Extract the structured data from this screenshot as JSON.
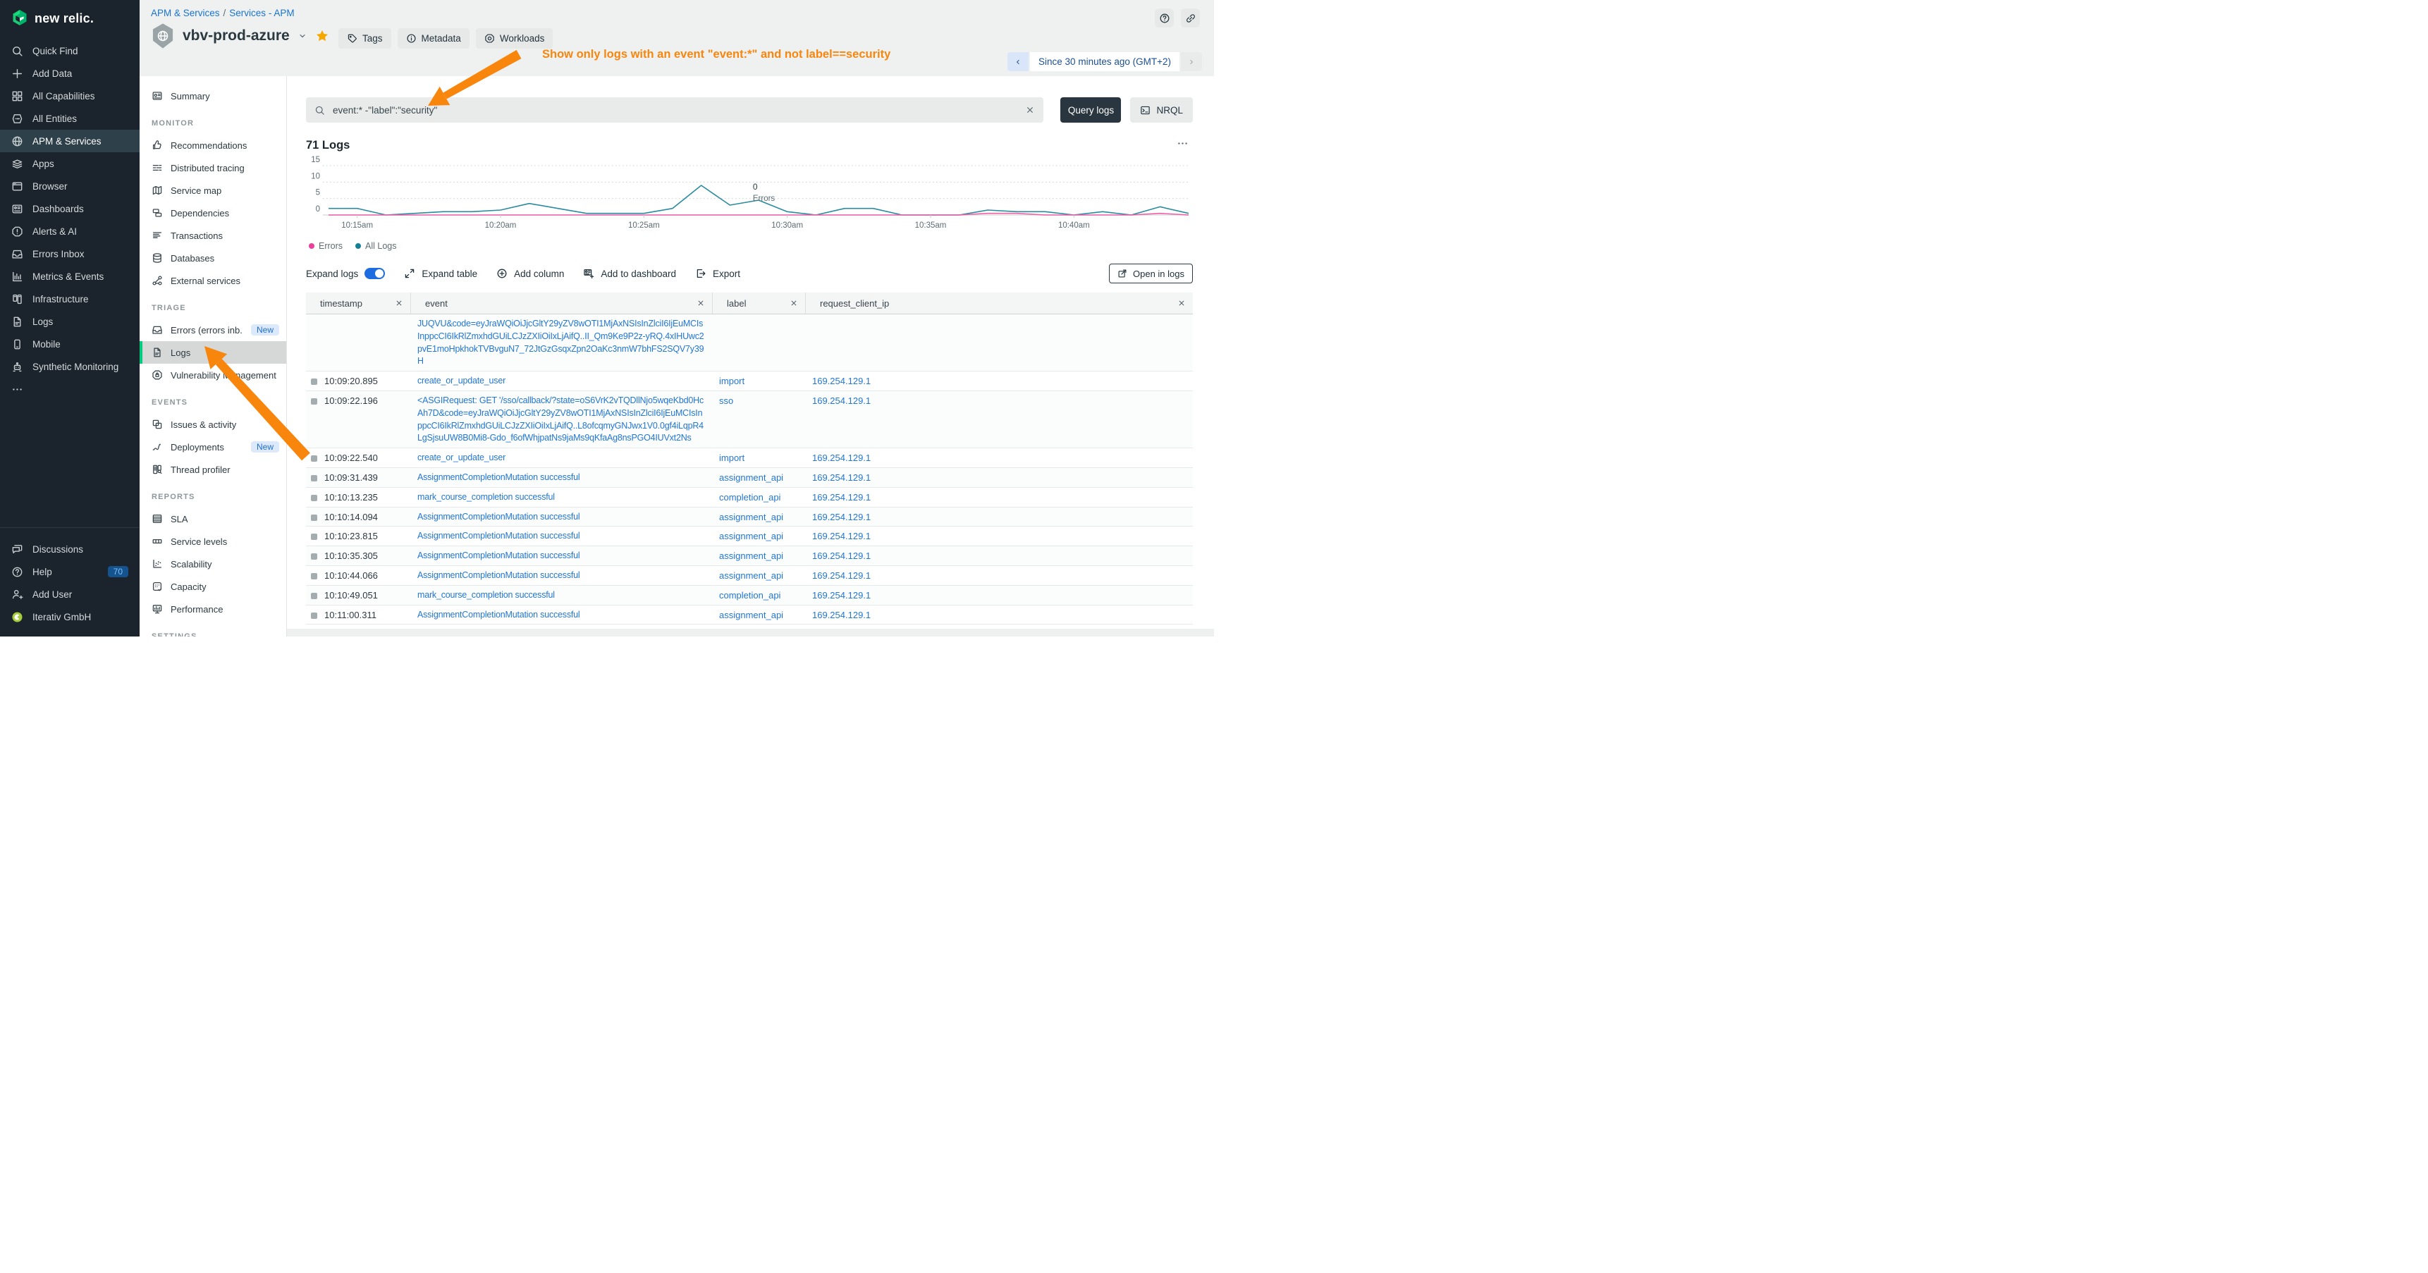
{
  "brand": {
    "logo_text": "new relic."
  },
  "colors": {
    "accent_green": "#00ce7e",
    "annotation_orange": "#f8860d",
    "link_blue": "#2277d5",
    "breadcrumb_blue": "#1874d0",
    "chart_teal": "#2a8ba0",
    "chart_pink": "#ef5fa8",
    "toggle_blue": "#1d6ce0",
    "star_gold": "#f5a800"
  },
  "sidebar": {
    "items": [
      {
        "label": "Quick Find",
        "icon": "search"
      },
      {
        "label": "Add Data",
        "icon": "plus"
      },
      {
        "label": "All Capabilities",
        "icon": "grid"
      },
      {
        "label": "All Entities",
        "icon": "entities"
      },
      {
        "label": "APM & Services",
        "icon": "globe",
        "active": true
      },
      {
        "label": "Apps",
        "icon": "layers"
      },
      {
        "label": "Browser",
        "icon": "browser"
      },
      {
        "label": "Dashboards",
        "icon": "dashboard"
      },
      {
        "label": "Alerts & AI",
        "icon": "alert"
      },
      {
        "label": "Errors Inbox",
        "icon": "inbox"
      },
      {
        "label": "Metrics & Events",
        "icon": "metrics"
      },
      {
        "label": "Infrastructure",
        "icon": "infrastructure"
      },
      {
        "label": "Logs",
        "icon": "doc"
      },
      {
        "label": "Mobile",
        "icon": "mobile"
      },
      {
        "label": "Synthetic Monitoring",
        "icon": "robot"
      },
      {
        "label": "",
        "icon": "ellipsis"
      }
    ],
    "footer_items": [
      {
        "label": "Discussions",
        "icon": "chat"
      },
      {
        "label": "Help",
        "icon": "question",
        "badge": "70"
      },
      {
        "label": "Add User",
        "icon": "person-plus"
      },
      {
        "label": "Iterativ GmbH",
        "icon": "org-avatar"
      }
    ]
  },
  "subnav": {
    "sections": [
      {
        "title": "",
        "items": [
          {
            "label": "Summary",
            "icon": "summary"
          }
        ]
      },
      {
        "title": "MONITOR",
        "items": [
          {
            "label": "Recommendations",
            "icon": "thumb"
          },
          {
            "label": "Distributed tracing",
            "icon": "tracing"
          },
          {
            "label": "Service map",
            "icon": "map"
          },
          {
            "label": "Dependencies",
            "icon": "deps"
          },
          {
            "label": "Transactions",
            "icon": "transactions"
          },
          {
            "label": "Databases",
            "icon": "database"
          },
          {
            "label": "External services",
            "icon": "external-nodes"
          }
        ]
      },
      {
        "title": "TRIAGE",
        "items": [
          {
            "label": "Errors (errors inb...",
            "icon": "inbox",
            "badge": "New"
          },
          {
            "label": "Logs",
            "icon": "doc",
            "active": true
          },
          {
            "label": "Vulnerability Management",
            "icon": "vuln"
          }
        ]
      },
      {
        "title": "EVENTS",
        "items": [
          {
            "label": "Issues & activity",
            "icon": "issues"
          },
          {
            "label": "Deployments",
            "icon": "deploy",
            "badge": "New"
          },
          {
            "label": "Thread profiler",
            "icon": "thread"
          }
        ]
      },
      {
        "title": "REPORTS",
        "items": [
          {
            "label": "SLA",
            "icon": "sla"
          },
          {
            "label": "Service levels",
            "icon": "service-levels"
          },
          {
            "label": "Scalability",
            "icon": "scalability"
          },
          {
            "label": "Capacity",
            "icon": "capacity"
          },
          {
            "label": "Performance",
            "icon": "performance"
          }
        ]
      },
      {
        "title": "SETTINGS",
        "items": []
      }
    ]
  },
  "header": {
    "breadcrumb": [
      "APM & Services",
      "Services - APM"
    ],
    "entity_title": "vbv-prod-azure",
    "buttons": [
      {
        "label": "Tags",
        "icon": "tag"
      },
      {
        "label": "Metadata",
        "icon": "info"
      },
      {
        "label": "Workloads",
        "icon": "workload"
      }
    ],
    "time_picker": {
      "label": "Since 30 minutes ago (GMT+2)"
    },
    "annotation": {
      "text": "Show only logs with an event \"event:*\" and not label==security",
      "color": "#f8860d"
    }
  },
  "query_bar": {
    "query": "event:* -\"label\":\"security\"",
    "query_button": "Query logs",
    "nrql_button": "NRQL"
  },
  "logs_panel": {
    "title": "71 Logs",
    "toolbar": {
      "expand_logs": "Expand logs",
      "expand_table": "Expand table",
      "add_column": "Add column",
      "add_to_dashboard": "Add to dashboard",
      "export": "Export",
      "open_in_logs": "Open in logs"
    }
  },
  "chart_data": {
    "type": "line",
    "title": "71 Logs",
    "x": [
      "10:14",
      "10:15",
      "10:16",
      "10:17",
      "10:18",
      "10:19",
      "10:20",
      "10:21",
      "10:22",
      "10:23",
      "10:24",
      "10:25",
      "10:26",
      "10:27",
      "10:28",
      "10:29",
      "10:30",
      "10:31",
      "10:32",
      "10:33",
      "10:34",
      "10:35",
      "10:36",
      "10:37",
      "10:38",
      "10:39",
      "10:40",
      "10:41",
      "10:42",
      "10:43",
      "10:44"
    ],
    "series": [
      {
        "name": "Errors",
        "color": "#ef5fa8",
        "values": [
          0,
          0,
          0,
          0,
          0,
          0,
          0,
          0,
          0,
          0,
          0,
          0,
          0,
          0,
          0,
          0,
          0,
          0,
          0,
          0,
          0,
          0,
          0,
          0.5,
          0.5,
          0,
          0,
          0,
          0,
          0.5,
          0
        ]
      },
      {
        "name": "All Logs",
        "color": "#2a8ba0",
        "values": [
          2,
          2,
          0,
          0.5,
          1,
          1,
          1.5,
          3.5,
          2,
          0.5,
          0.5,
          0.5,
          2,
          9,
          3,
          4.5,
          1,
          0,
          2,
          2,
          0,
          0,
          0,
          1.5,
          1,
          1,
          0,
          1,
          0,
          2.5,
          0.5
        ]
      }
    ],
    "ylim": [
      0,
      15
    ],
    "yticks": [
      0,
      5,
      10,
      15
    ],
    "tick_indices": [
      1,
      6,
      11,
      16,
      21,
      26
    ],
    "tick_labels": [
      "10:15am",
      "10:20am",
      "10:25am",
      "10:30am",
      "10:35am",
      "10:40am"
    ],
    "legend": [
      {
        "label": "Errors",
        "color": "#ee3d9b"
      },
      {
        "label": "All Logs",
        "color": "#157f95"
      }
    ],
    "annotation": {
      "value": "0",
      "label": "Errors",
      "x_index": 14.8
    },
    "grid": true,
    "legend_position": "bottom-left"
  },
  "table": {
    "columns": [
      "timestamp",
      "event",
      "label",
      "request_client_ip"
    ],
    "rows": [
      {
        "timestamp": "",
        "event": "JUQVU&code=eyJraWQiOiJjcGltY29yZV8wOTI1MjAxNSIsInZlciI6IjEuMCIsInppcCI6IkRlZmxhdGUiLCJzZXIiOiIxLjAifQ..II_Qm9Ke9P2z-yRQ.4xIHUwc2pvE1moHpkhokTVBvguN7_72JtGzGsqxZpn2OaKc3nmW7bhFS2SQV7y39H",
        "label": "",
        "request_client_ip": ""
      },
      {
        "timestamp": "10:09:20.895",
        "event": "create_or_update_user",
        "label": "import",
        "request_client_ip": "169.254.129.1"
      },
      {
        "timestamp": "10:09:22.196",
        "event": "<ASGIRequest: GET '/sso/callback/?state=oS6VrK2vTQDllNjo5wqeKbd0HcAh7D&code=eyJraWQiOiJjcGltY29yZV8wOTI1MjAxNSIsInZlciI6IjEuMCIsInppcCI6IkRlZmxhdGUiLCJzZXIiOiIxLjAifQ..L8ofcqmyGNJwx1V0.0gf4iLqpR4LgSjsuUW8B0Mi8-Gdo_f6ofWhjpatNs9jaMs9qKfaAg8nsPGO4IUVxt2Ns",
        "label": "sso",
        "request_client_ip": "169.254.129.1"
      },
      {
        "timestamp": "10:09:22.540",
        "event": "create_or_update_user",
        "label": "import",
        "request_client_ip": "169.254.129.1"
      },
      {
        "timestamp": "10:09:31.439",
        "event": "AssignmentCompletionMutation successful",
        "label": "assignment_api",
        "request_client_ip": "169.254.129.1"
      },
      {
        "timestamp": "10:10:13.235",
        "event": "mark_course_completion successful",
        "label": "completion_api",
        "request_client_ip": "169.254.129.1"
      },
      {
        "timestamp": "10:10:14.094",
        "event": "AssignmentCompletionMutation successful",
        "label": "assignment_api",
        "request_client_ip": "169.254.129.1"
      },
      {
        "timestamp": "10:10:23.815",
        "event": "AssignmentCompletionMutation successful",
        "label": "assignment_api",
        "request_client_ip": "169.254.129.1"
      },
      {
        "timestamp": "10:10:35.305",
        "event": "AssignmentCompletionMutation successful",
        "label": "assignment_api",
        "request_client_ip": "169.254.129.1"
      },
      {
        "timestamp": "10:10:44.066",
        "event": "AssignmentCompletionMutation successful",
        "label": "assignment_api",
        "request_client_ip": "169.254.129.1"
      },
      {
        "timestamp": "10:10:49.051",
        "event": "mark_course_completion successful",
        "label": "completion_api",
        "request_client_ip": "169.254.129.1"
      },
      {
        "timestamp": "10:11:00.311",
        "event": "AssignmentCompletionMutation successful",
        "label": "assignment_api",
        "request_client_ip": "169.254.129.1"
      }
    ]
  }
}
